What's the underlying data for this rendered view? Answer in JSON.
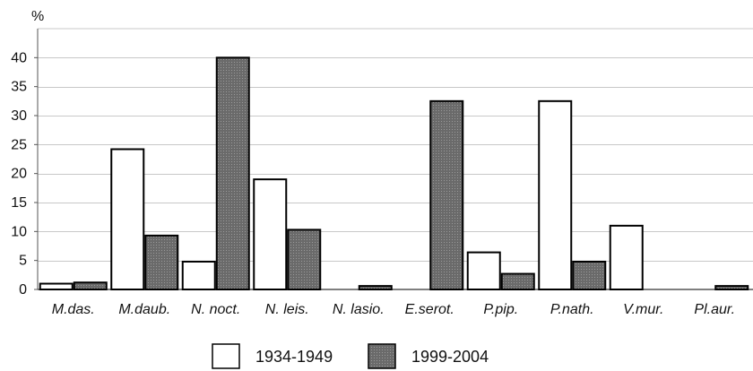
{
  "chart_data": {
    "type": "bar",
    "ylabel": "%",
    "ylim": [
      0,
      45
    ],
    "yticks": [
      0,
      5,
      10,
      15,
      20,
      25,
      30,
      35,
      40
    ],
    "grid": true,
    "legend_position": "bottom",
    "categories": [
      "M.das.",
      "M.daub.",
      "N. noct.",
      "N. leis.",
      "N. lasio.",
      "E.serot.",
      "P.pip.",
      "P.nath.",
      "V.mur.",
      "Pl.aur."
    ],
    "series": [
      {
        "name": "1934-1949",
        "color": "#ffffff",
        "values": [
          1.0,
          24.2,
          4.8,
          19.0,
          0.0,
          0.0,
          6.4,
          32.5,
          11.0,
          0.0
        ]
      },
      {
        "name": "1999-2004",
        "color": "#404040",
        "values": [
          1.2,
          9.3,
          40.0,
          10.3,
          0.6,
          32.5,
          2.7,
          4.8,
          0.0,
          0.6
        ]
      }
    ]
  }
}
